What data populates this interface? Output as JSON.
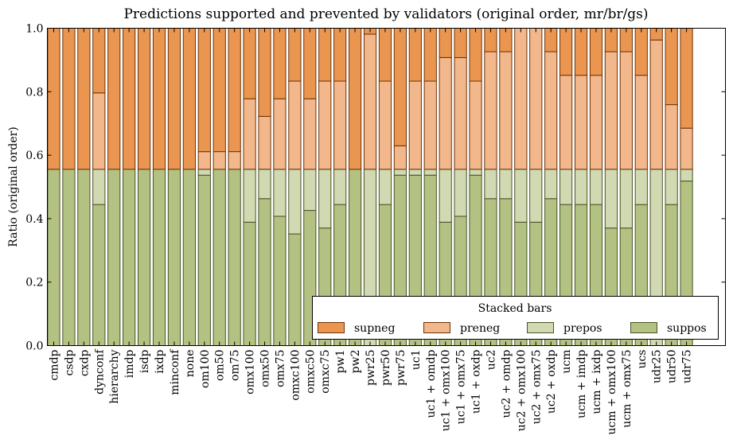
{
  "chart_data": {
    "type": "bar",
    "stacked": true,
    "title": "Predictions supported and prevented by validators (original order, mr/br/gs)",
    "xlabel": "",
    "ylabel": "Ratio (original order)",
    "ylim": [
      0.0,
      1.0
    ],
    "yticks": [
      "0.0",
      "0.2",
      "0.4",
      "0.6",
      "0.8",
      "1.0"
    ],
    "grid": false,
    "legend": {
      "title": "Stacked bars",
      "placement": "lower-right",
      "entries": [
        "supneg",
        "preneg",
        "prepos",
        "suppos"
      ]
    },
    "categories": [
      "cmdp",
      "csdp",
      "cxdp",
      "dynconf",
      "hierarchy",
      "imdp",
      "isdp",
      "ixdp",
      "minconf",
      "none",
      "om100",
      "om50",
      "om75",
      "omx100",
      "omx50",
      "omx75",
      "omxc100",
      "omxc50",
      "omxc75",
      "pw1",
      "pw2",
      "pwr25",
      "pwr50",
      "pwr75",
      "uc1",
      "uc1 + omdp",
      "uc1 + omx100",
      "uc1 + omx75",
      "uc1 + oxdp",
      "uc2",
      "uc2 + omdp",
      "uc2 + omx100",
      "uc2 + omx75",
      "uc2 + oxdp",
      "ucm",
      "ucm + imdp",
      "ucm + ixdp",
      "ucm + omx100",
      "ucm + omx75",
      "ucs",
      "udr25",
      "udr50",
      "udr75"
    ],
    "series": [
      {
        "name": "suppos",
        "color": "#b3c282",
        "values": [
          0.5556,
          0.5556,
          0.5556,
          0.4444,
          0.5556,
          0.5556,
          0.5556,
          0.5556,
          0.5556,
          0.5556,
          0.537,
          0.5556,
          0.5556,
          0.3889,
          0.463,
          0.4074,
          0.3519,
          0.4259,
          0.3704,
          0.4444,
          0.5556,
          0.0,
          0.4444,
          0.537,
          0.537,
          0.537,
          0.3889,
          0.4074,
          0.537,
          0.463,
          0.463,
          0.3889,
          0.3889,
          0.463,
          0.4444,
          0.4444,
          0.4444,
          0.3704,
          0.3704,
          0.4444,
          0.0,
          0.4444,
          0.5185
        ]
      },
      {
        "name": "prepos",
        "color": "#d0d9b1",
        "values": [
          0.0,
          0.0,
          0.0,
          0.1111,
          0.0,
          0.0,
          0.0,
          0.0,
          0.0,
          0.0,
          0.0185,
          0.0,
          0.0,
          0.1667,
          0.0926,
          0.1481,
          0.2037,
          0.1296,
          0.1852,
          0.1111,
          0.0,
          0.5556,
          0.1111,
          0.0185,
          0.0185,
          0.0185,
          0.1667,
          0.1481,
          0.0185,
          0.0926,
          0.0926,
          0.1667,
          0.1667,
          0.0926,
          0.1111,
          0.1111,
          0.1111,
          0.1852,
          0.1852,
          0.1111,
          0.5556,
          0.1111,
          0.037
        ]
      },
      {
        "name": "preneg",
        "color": "#f2b78a",
        "values": [
          0.0,
          0.0,
          0.0,
          0.2407,
          0.0,
          0.0,
          0.0,
          0.0,
          0.0,
          0.0,
          0.0556,
          0.0556,
          0.0556,
          0.2222,
          0.1667,
          0.2222,
          0.2778,
          0.2222,
          0.2778,
          0.2778,
          0.0,
          0.4259,
          0.2778,
          0.0741,
          0.2778,
          0.2778,
          0.3519,
          0.3519,
          0.2778,
          0.3704,
          0.3704,
          0.4444,
          0.4444,
          0.3704,
          0.2963,
          0.2963,
          0.2963,
          0.3704,
          0.3704,
          0.2963,
          0.4074,
          0.2037,
          0.1296
        ]
      },
      {
        "name": "supneg",
        "color": "#eb9650",
        "values": [
          0.4444,
          0.4444,
          0.4444,
          0.2037,
          0.4444,
          0.4444,
          0.4444,
          0.4444,
          0.4444,
          0.4444,
          0.3889,
          0.3889,
          0.3889,
          0.2222,
          0.2778,
          0.2222,
          0.1667,
          0.2222,
          0.1667,
          0.1667,
          0.4444,
          0.0185,
          0.1667,
          0.3704,
          0.1667,
          0.1667,
          0.0926,
          0.0926,
          0.1667,
          0.0741,
          0.0741,
          0.0,
          0.0,
          0.0741,
          0.1481,
          0.1481,
          0.1481,
          0.0741,
          0.0741,
          0.1481,
          0.037,
          0.2407,
          0.3148
        ]
      }
    ]
  },
  "colors": {
    "supneg_edge": "#6b3208",
    "suppos_edge": "#4a5226"
  }
}
